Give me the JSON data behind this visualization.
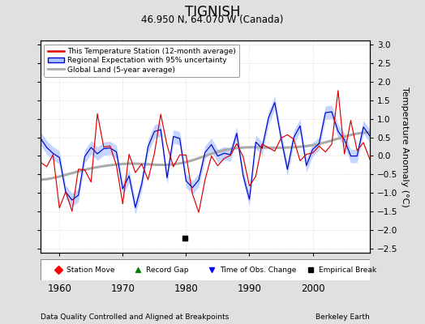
{
  "title": "TIGNISH",
  "subtitle": "46.950 N, 64.070 W (Canada)",
  "xlabel_left": "Data Quality Controlled and Aligned at Breakpoints",
  "xlabel_right": "Berkeley Earth",
  "ylabel": "Temperature Anomaly (°C)",
  "xlim": [
    1957,
    2009
  ],
  "ylim": [
    -2.6,
    3.1
  ],
  "yticks": [
    -2.5,
    -2,
    -1.5,
    -1,
    -0.5,
    0,
    0.5,
    1,
    1.5,
    2,
    2.5,
    3
  ],
  "xticks": [
    1960,
    1970,
    1980,
    1990,
    2000
  ],
  "bg_color": "#e0e0e0",
  "plot_bg_color": "#ffffff",
  "grid_color": "#cccccc",
  "station_color": "#dd0000",
  "regional_color": "#0000cc",
  "regional_band_color": "#aac4ff",
  "global_color": "#aaaaaa",
  "empirical_break_x": 1979.8,
  "empirical_break_y": -2.2,
  "seed": 12
}
